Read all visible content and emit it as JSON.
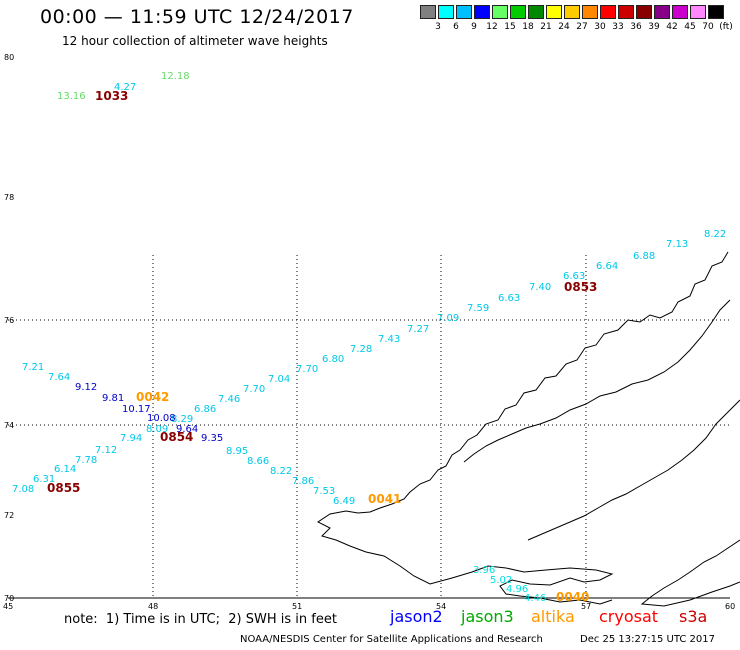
{
  "header": {
    "title": "00:00 — 11:59 UTC 12/24/2017",
    "subtitle": "12 hour collection of altimeter wave heights"
  },
  "scale": {
    "colors": [
      "#808080",
      "#00ffff",
      "#00bfff",
      "#0000ff",
      "#66ff66",
      "#00cc00",
      "#008800",
      "#ffff00",
      "#ffcc00",
      "#ff8800",
      "#ff0000",
      "#cc0000",
      "#880000",
      "#880088",
      "#cc00cc",
      "#ff88ff",
      "#000000"
    ],
    "labels": [
      "3",
      "6",
      "9",
      "12",
      "15",
      "18",
      "21",
      "24",
      "27",
      "30",
      "33",
      "36",
      "39",
      "42",
      "45",
      "70",
      "(ft)"
    ]
  },
  "axes": {
    "lat_labels": [
      "80",
      "78",
      "76",
      "74",
      "72",
      "70"
    ],
    "lon_labels": [
      "45",
      "48",
      "51",
      "54",
      "57",
      "60"
    ]
  },
  "observations": [
    {
      "v": "13.16",
      "c": "#66dd66"
    },
    {
      "v": "4.27",
      "c": "#00c8e8"
    },
    {
      "v": "12.18",
      "c": "#66dd66"
    },
    {
      "v": "1033",
      "c": "#880000"
    },
    {
      "v": "8.22",
      "c": "#00c8e8"
    },
    {
      "v": "7.13",
      "c": "#00c8e8"
    },
    {
      "v": "6.88",
      "c": "#00c8e8"
    },
    {
      "v": "6.64",
      "c": "#00c8e8"
    },
    {
      "v": "6.63",
      "c": "#00c8e8"
    },
    {
      "v": "0853",
      "c": "#880000"
    },
    {
      "v": "7.40",
      "c": "#00c8e8"
    },
    {
      "v": "6.63",
      "c": "#00c8e8"
    },
    {
      "v": "7.59",
      "c": "#00c8e8"
    },
    {
      "v": "7.09",
      "c": "#00c8e8"
    },
    {
      "v": "7.27",
      "c": "#00c8e8"
    },
    {
      "v": "7.43",
      "c": "#00c8e8"
    },
    {
      "v": "7.28",
      "c": "#00c8e8"
    },
    {
      "v": "6.80",
      "c": "#00c8e8"
    },
    {
      "v": "7.70",
      "c": "#00c8e8"
    },
    {
      "v": "7.04",
      "c": "#00c8e8"
    },
    {
      "v": "7.70",
      "c": "#00c8e8"
    },
    {
      "v": "7.46",
      "c": "#00c8e8"
    },
    {
      "v": "6.86",
      "c": "#00c8e8"
    },
    {
      "v": "8.29",
      "c": "#00c8e8"
    },
    {
      "v": "7.21",
      "c": "#00c8e8"
    },
    {
      "v": "7.64",
      "c": "#00c8e8"
    },
    {
      "v": "9.12",
      "c": "#0000cc"
    },
    {
      "v": "9.81",
      "c": "#0000cc"
    },
    {
      "v": "0042",
      "c": "#ff9900"
    },
    {
      "v": "10.17",
      "c": "#0000cc"
    },
    {
      "v": "10.08",
      "c": "#0000cc"
    },
    {
      "v": "8.09",
      "c": "#00c8e8"
    },
    {
      "v": "9.64",
      "c": "#0000cc"
    },
    {
      "v": "9.35",
      "c": "#0000cc"
    },
    {
      "v": "0854",
      "c": "#880000"
    },
    {
      "v": "7.94",
      "c": "#00c8e8"
    },
    {
      "v": "7.12",
      "c": "#00c8e8"
    },
    {
      "v": "7.78",
      "c": "#00c8e8"
    },
    {
      "v": "6.14",
      "c": "#00c8e8"
    },
    {
      "v": "6.31",
      "c": "#00c8e8"
    },
    {
      "v": "7.08",
      "c": "#00c8e8"
    },
    {
      "v": "0855",
      "c": "#880000"
    },
    {
      "v": "8.95",
      "c": "#00c8e8"
    },
    {
      "v": "8.66",
      "c": "#00c8e8"
    },
    {
      "v": "8.22",
      "c": "#00c8e8"
    },
    {
      "v": "7.86",
      "c": "#00c8e8"
    },
    {
      "v": "7.53",
      "c": "#00c8e8"
    },
    {
      "v": "6.49",
      "c": "#00c8e8"
    },
    {
      "v": "0041",
      "c": "#ff9900"
    },
    {
      "v": "3.96",
      "c": "#00e0e0"
    },
    {
      "v": "5.02",
      "c": "#00e0e0"
    },
    {
      "v": "4.96",
      "c": "#00e0e0"
    },
    {
      "v": "4.46",
      "c": "#00e0e0"
    },
    {
      "v": "0040",
      "c": "#ff9900"
    }
  ],
  "footer": {
    "note": "note:  1) Time is in UTC;  2) SWH is in feet",
    "sat_jason2": "jason2",
    "sat_jason3": "jason3",
    "sat_altika": "altika",
    "sat_cryosat": "cryosat",
    "sat_s3a": "s3a",
    "credit": "NOAA/NESDIS Center for Satellite Applications and Research",
    "timestamp": "Dec 25 13:27:15 UTC 2017",
    "colors": {
      "jason2": "#0000ff",
      "jason3": "#00aa00",
      "altika": "#ff9900",
      "cryosat": "#ff0000",
      "s3a": "#cc0000"
    }
  }
}
